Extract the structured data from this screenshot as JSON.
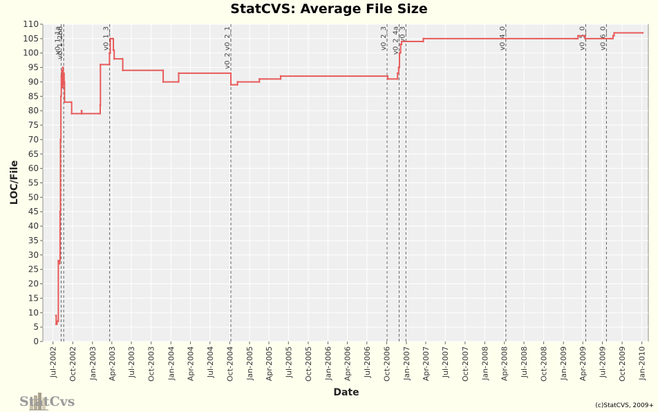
{
  "chart_data": {
    "type": "line",
    "title": "StatCVS: Average File Size",
    "xlabel": "Date",
    "ylabel": "LOC/File",
    "ylim": [
      0,
      110
    ],
    "yticks": [
      0,
      5,
      10,
      15,
      20,
      25,
      30,
      35,
      40,
      45,
      50,
      55,
      60,
      65,
      70,
      75,
      80,
      85,
      90,
      95,
      100,
      105,
      110
    ],
    "xlim": [
      "2002-05-15",
      "2010-01-31"
    ],
    "xticks": [
      "Jul-2002",
      "Oct-2002",
      "Jan-2003",
      "Apr-2003",
      "Jul-2003",
      "Oct-2003",
      "Jan-2004",
      "Apr-2004",
      "Jul-2004",
      "Oct-2004",
      "Jan-2005",
      "Apr-2005",
      "Jul-2005",
      "Oct-2005",
      "Jan-2006",
      "Apr-2006",
      "Jul-2006",
      "Oct-2006",
      "Jan-2007",
      "Apr-2007",
      "Jul-2007",
      "Oct-2007",
      "Jan-2008",
      "Apr-2008",
      "Jul-2008",
      "Oct-2008",
      "Jan-2009",
      "Apr-2009",
      "Jul-2009",
      "Oct-2009",
      "Jan-2010"
    ],
    "xtick_dates": [
      "2002-07-01",
      "2002-10-01",
      "2003-01-01",
      "2003-04-01",
      "2003-07-01",
      "2003-10-01",
      "2004-01-01",
      "2004-04-01",
      "2004-07-01",
      "2004-10-01",
      "2005-01-01",
      "2005-04-01",
      "2005-07-01",
      "2005-10-01",
      "2006-01-01",
      "2006-04-01",
      "2006-07-01",
      "2006-10-01",
      "2007-01-01",
      "2007-04-01",
      "2007-07-01",
      "2007-10-01",
      "2008-01-01",
      "2008-04-01",
      "2008-07-01",
      "2008-10-01",
      "2009-01-01",
      "2009-04-01",
      "2009-07-01",
      "2009-10-01",
      "2010-01-01"
    ],
    "grid": true,
    "series": [
      {
        "color": "#E85A5A",
        "points": [
          [
            "2002-07-15",
            9
          ],
          [
            "2002-07-16",
            6
          ],
          [
            "2002-07-20",
            7
          ],
          [
            "2002-07-25",
            7
          ],
          [
            "2002-07-26",
            28
          ],
          [
            "2002-07-31",
            27
          ],
          [
            "2002-08-01",
            28
          ],
          [
            "2002-08-03",
            45
          ],
          [
            "2002-08-05",
            70
          ],
          [
            "2002-08-07",
            85
          ],
          [
            "2002-08-09",
            92
          ],
          [
            "2002-08-11",
            94
          ],
          [
            "2002-08-14",
            88
          ],
          [
            "2002-08-16",
            95
          ],
          [
            "2002-08-18",
            89
          ],
          [
            "2002-08-20",
            93
          ],
          [
            "2002-08-22",
            90
          ],
          [
            "2002-08-24",
            83
          ],
          [
            "2002-09-25",
            83
          ],
          [
            "2002-09-26",
            79
          ],
          [
            "2002-11-10",
            79
          ],
          [
            "2002-11-11",
            80
          ],
          [
            "2002-11-12",
            79
          ],
          [
            "2003-02-05",
            79
          ],
          [
            "2003-02-06",
            82
          ],
          [
            "2003-02-07",
            96
          ],
          [
            "2003-03-20",
            96
          ],
          [
            "2003-03-21",
            100
          ],
          [
            "2003-03-25",
            105
          ],
          [
            "2003-04-05",
            105
          ],
          [
            "2003-04-08",
            101
          ],
          [
            "2003-04-12",
            98
          ],
          [
            "2003-05-20",
            98
          ],
          [
            "2003-05-22",
            94
          ],
          [
            "2003-11-25",
            94
          ],
          [
            "2003-11-26",
            90
          ],
          [
            "2004-02-05",
            90
          ],
          [
            "2004-02-06",
            93
          ],
          [
            "2004-10-05",
            93
          ],
          [
            "2004-10-06",
            89
          ],
          [
            "2004-11-05",
            89
          ],
          [
            "2004-11-06",
            90
          ],
          [
            "2005-02-15",
            90
          ],
          [
            "2005-02-16",
            91
          ],
          [
            "2005-05-25",
            91
          ],
          [
            "2005-05-26",
            92
          ],
          [
            "2006-10-05",
            92
          ],
          [
            "2006-10-06",
            91
          ],
          [
            "2006-11-20",
            91
          ],
          [
            "2006-11-21",
            93
          ],
          [
            "2006-11-26",
            95
          ],
          [
            "2006-11-30",
            100
          ],
          [
            "2006-12-05",
            103
          ],
          [
            "2006-12-10",
            104
          ],
          [
            "2007-03-20",
            104
          ],
          [
            "2007-03-21",
            105
          ],
          [
            "2009-03-01",
            105
          ],
          [
            "2009-03-10",
            106
          ],
          [
            "2009-04-10",
            106
          ],
          [
            "2009-04-12",
            105
          ],
          [
            "2009-08-10",
            105
          ],
          [
            "2009-08-20",
            106
          ],
          [
            "2009-08-25",
            107
          ],
          [
            "2010-01-05",
            107
          ]
        ]
      }
    ],
    "markers": [
      {
        "label": "v0_1_1a",
        "date": "2002-08-08"
      },
      {
        "label": "v0_1_2b6",
        "date": "2002-08-20"
      },
      {
        "label": "v0_1_3",
        "date": "2003-03-22"
      },
      {
        "label": "v0_2 v0_2_1",
        "date": "2004-10-06"
      },
      {
        "label": "v0_2_3",
        "date": "2006-10-03"
      },
      {
        "label": "v0_2_4a",
        "date": "2006-11-28"
      },
      {
        "label": "v0_3",
        "date": "2006-12-30"
      },
      {
        "label": "v0_4_0",
        "date": "2008-04-08"
      },
      {
        "label": "v0_5_0",
        "date": "2009-04-15"
      },
      {
        "label": "v0_6_0",
        "date": "2009-07-20"
      }
    ]
  },
  "footer": {
    "logo_text": "StatCvs",
    "copyright": "(c)StatCVS, 2009+"
  }
}
